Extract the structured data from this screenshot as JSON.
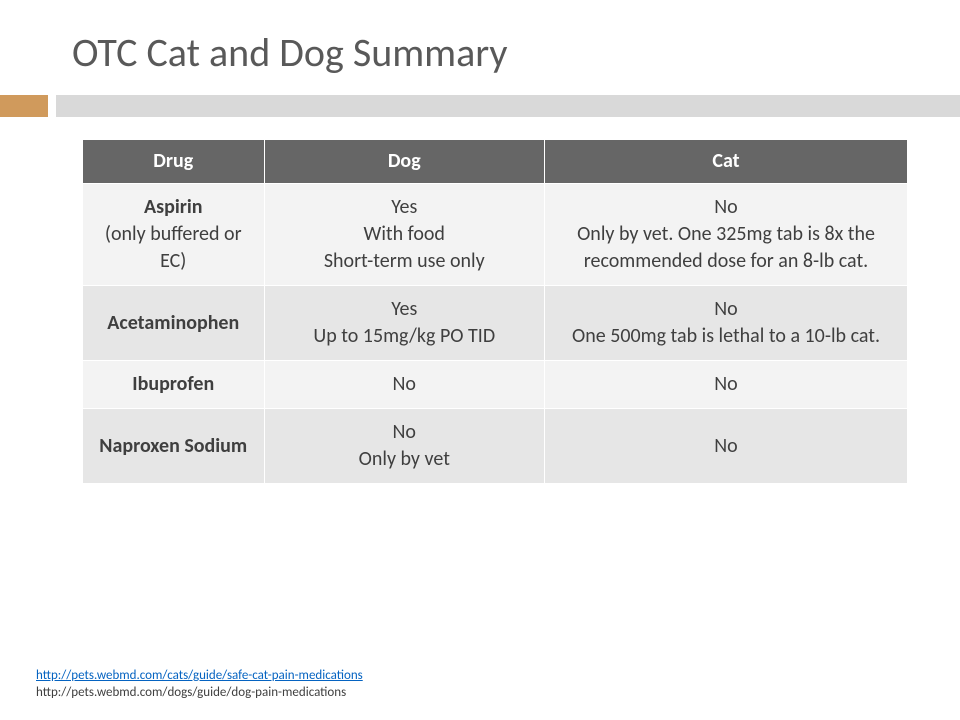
{
  "title": "OTC Cat and Dog Summary",
  "colors": {
    "accent_orange": "#d09a5c",
    "divider_gray": "#d9d9d9",
    "header_bg": "#666666",
    "header_text": "#ffffff",
    "row_light": "#f3f3f3",
    "row_dark": "#e6e6e6",
    "text": "#3f3f3f",
    "link": "#0563c1"
  },
  "table": {
    "type": "table",
    "columns": [
      "Drug",
      "Dog",
      "Cat"
    ],
    "col_widths_pct": [
      22,
      34,
      44
    ],
    "title_fontsize": 40,
    "header_fontsize": 20,
    "cell_fontsize": 20,
    "rows": [
      {
        "shade": "light",
        "drug_main": "Aspirin",
        "drug_sub": "(only buffered or EC)",
        "dog": "Yes\nWith food\nShort-term use only",
        "cat": "No\nOnly by vet. One 325mg tab is 8x the recommended dose for an 8-lb cat."
      },
      {
        "shade": "dark",
        "drug_main": "Acetaminophen",
        "drug_sub": "",
        "dog": "Yes\nUp to 15mg/kg PO TID",
        "cat": "No\nOne 500mg tab is lethal to a 10-lb cat."
      },
      {
        "shade": "light",
        "drug_main": "Ibuprofen",
        "drug_sub": "",
        "dog": "No",
        "cat": "No"
      },
      {
        "shade": "dark",
        "drug_main": "Naproxen Sodium",
        "drug_sub": "",
        "dog": "No\nOnly by vet",
        "cat": "No"
      }
    ]
  },
  "footer": {
    "link_text": "http://pets.webmd.com/cats/guide/safe-cat-pain-medications",
    "link_href": "http://pets.webmd.com/cats/guide/safe-cat-pain-medications",
    "plain_text": "http://pets.webmd.com/dogs/guide/dog-pain-medications"
  }
}
